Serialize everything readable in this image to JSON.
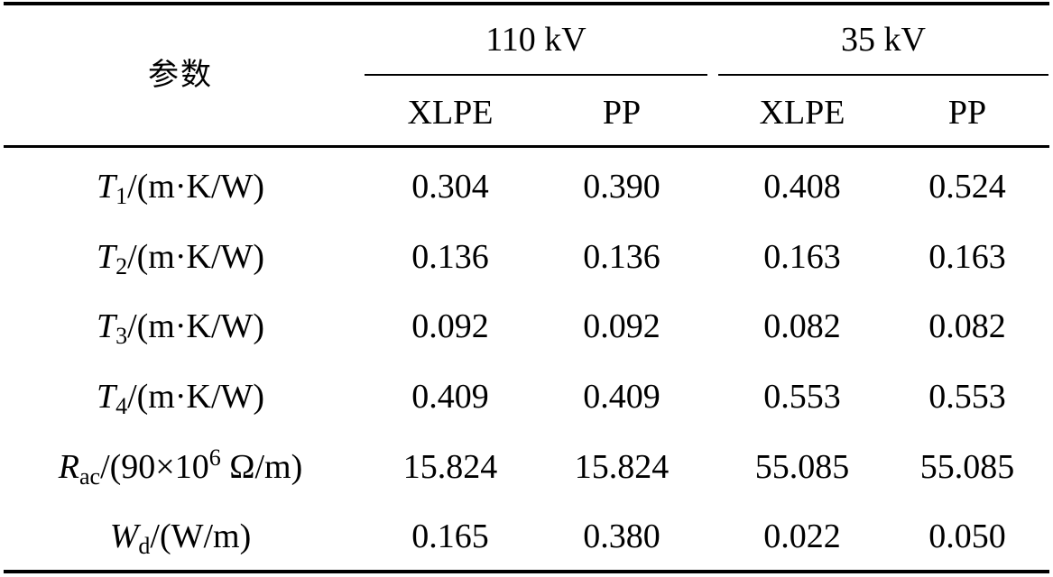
{
  "table": {
    "corner_header": "参数",
    "groups": [
      {
        "label": "110 kV",
        "columns": [
          "XLPE",
          "PP"
        ]
      },
      {
        "label": "35 kV",
        "columns": [
          "XLPE",
          "PP"
        ]
      }
    ],
    "rows": [
      {
        "symbol": "T",
        "subscript": "1",
        "unit": "/(m·K/W)",
        "values": [
          "0.304",
          "0.390",
          "0.408",
          "0.524"
        ]
      },
      {
        "symbol": "T",
        "subscript": "2",
        "unit": "/(m·K/W)",
        "values": [
          "0.136",
          "0.136",
          "0.163",
          "0.163"
        ]
      },
      {
        "symbol": "T",
        "subscript": "3",
        "unit": "/(m·K/W)",
        "values": [
          "0.092",
          "0.092",
          "0.082",
          "0.082"
        ]
      },
      {
        "symbol": "T",
        "subscript": "4",
        "unit": "/(m·K/W)",
        "values": [
          "0.409",
          "0.409",
          "0.553",
          "0.553"
        ]
      },
      {
        "symbol": "R",
        "subscript": "ac",
        "unit": "/(90×10",
        "superscript": "6",
        "unit_tail": " Ω/m)",
        "values": [
          "15.824",
          "15.824",
          "55.085",
          "55.085"
        ]
      },
      {
        "symbol": "W",
        "subscript": "d",
        "unit": "/(W/m)",
        "values": [
          "0.165",
          "0.380",
          "0.022",
          "0.050"
        ]
      }
    ]
  }
}
